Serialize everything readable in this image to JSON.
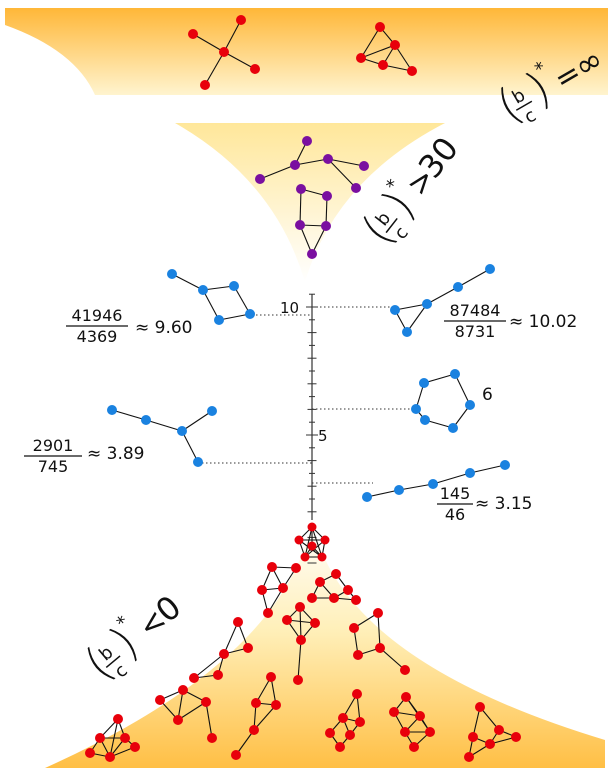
{
  "regions": {
    "top": {
      "lhs_num": "b",
      "lhs_den": "c",
      "rel": "=",
      "rhs": "∞"
    },
    "middle": {
      "lhs_num": "b",
      "lhs_den": "c",
      "rel": ">",
      "rhs": "30"
    },
    "bottom": {
      "lhs_num": "b",
      "lhs_den": "c",
      "rel": "<",
      "rhs": "0"
    }
  },
  "axis": {
    "tick_10": "10",
    "tick_5": "5",
    "value_min": 0,
    "value_max": 11
  },
  "annotations": [
    {
      "num": "41946",
      "den": "4369",
      "approx": "≈ 9.60",
      "value": 9.6
    },
    {
      "num": "87484",
      "den": "8731",
      "approx": "≈ 10.02",
      "value": 10.02
    },
    {
      "num": "2901",
      "den": "745",
      "approx": "≈ 3.89",
      "value": 3.89
    },
    {
      "num": "145",
      "den": "46",
      "approx": "≈ 3.15",
      "value": 3.15
    }
  ],
  "cycle_label": "6",
  "colors": {
    "red_node": "#e8000b",
    "purple_node": "#7a0fa0",
    "blue_node": "#1a82e0",
    "gold": "#ffb630",
    "pale": "#fff6c8"
  }
}
